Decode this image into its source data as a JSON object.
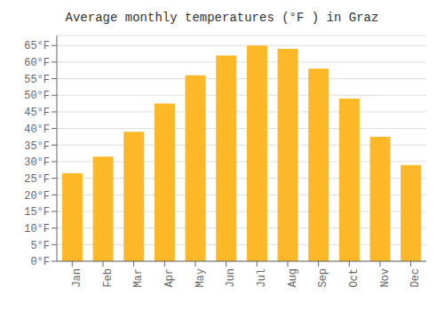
{
  "chart_data": {
    "type": "bar",
    "title": "Average monthly temperatures (°F ) in Graz",
    "categories": [
      "Jan",
      "Feb",
      "Mar",
      "Apr",
      "May",
      "Jun",
      "Jul",
      "Aug",
      "Sep",
      "Oct",
      "Nov",
      "Dec"
    ],
    "values": [
      26.5,
      31.5,
      39,
      47.5,
      56,
      62,
      65,
      64,
      58,
      49,
      37.5,
      29
    ],
    "color": "#FDB827",
    "ylim": [
      0,
      68
    ],
    "yticks": [
      {
        "value": 0,
        "label": "0°F"
      },
      {
        "value": 5,
        "label": "5°F"
      },
      {
        "value": 10,
        "label": "10°F"
      },
      {
        "value": 15,
        "label": "15°F"
      },
      {
        "value": 20,
        "label": "20°F"
      },
      {
        "value": 25,
        "label": "25°F"
      },
      {
        "value": 30,
        "label": "30°F"
      },
      {
        "value": 35,
        "label": "35°F"
      },
      {
        "value": 40,
        "label": "40°F"
      },
      {
        "value": 45,
        "label": "45°F"
      },
      {
        "value": 50,
        "label": "50°F"
      },
      {
        "value": 55,
        "label": "55°F"
      },
      {
        "value": 60,
        "label": "60°F"
      },
      {
        "value": 65,
        "label": "65°F"
      }
    ],
    "grid": true
  }
}
